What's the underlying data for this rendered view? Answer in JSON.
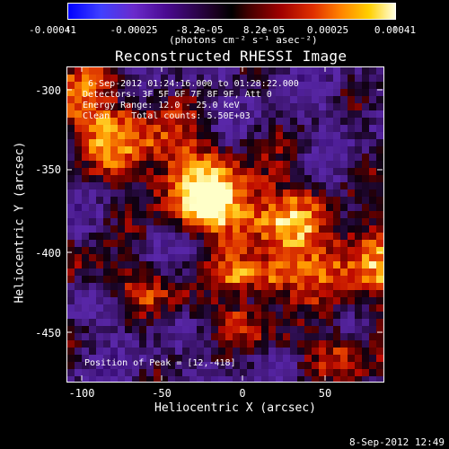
{
  "colorbar": {
    "tick_labels": [
      "-0.00041",
      "-0.00025",
      "-8.2e-05",
      "8.2e-05",
      "0.00025",
      "0.00041"
    ],
    "units_label": "(photons cm⁻² s⁻¹ asec⁻²)"
  },
  "plot": {
    "title": "Reconstructed RHESSI Image",
    "info_lines": [
      " 6-Sep-2012 01:24:16.000 to 01:28:22.000",
      "Detectors: 3F 5F 6F 7F 8F 9F, Att 0",
      "Energy Range: 12.0 - 25.0 keV",
      "Clean    Total counts: 5.50E+03"
    ],
    "peak_text": "Position of Peak = [12,-418]",
    "timestamp": "8-Sep-2012 12:49"
  },
  "chart_data": {
    "type": "heatmap",
    "title": "Reconstructed RHESSI Image",
    "xlabel": "Heliocentric X (arcsec)",
    "ylabel": "Heliocentric Y (arcsec)",
    "xlim": [
      -110,
      88
    ],
    "ylim": [
      -480,
      -285
    ],
    "x_ticks": [
      -100,
      -50,
      0,
      50
    ],
    "y_ticks": [
      -300,
      -350,
      -400,
      -450
    ],
    "colorbar_range": [
      -0.00041,
      0.00041
    ],
    "peak_position": [
      12,
      -418
    ]
  }
}
